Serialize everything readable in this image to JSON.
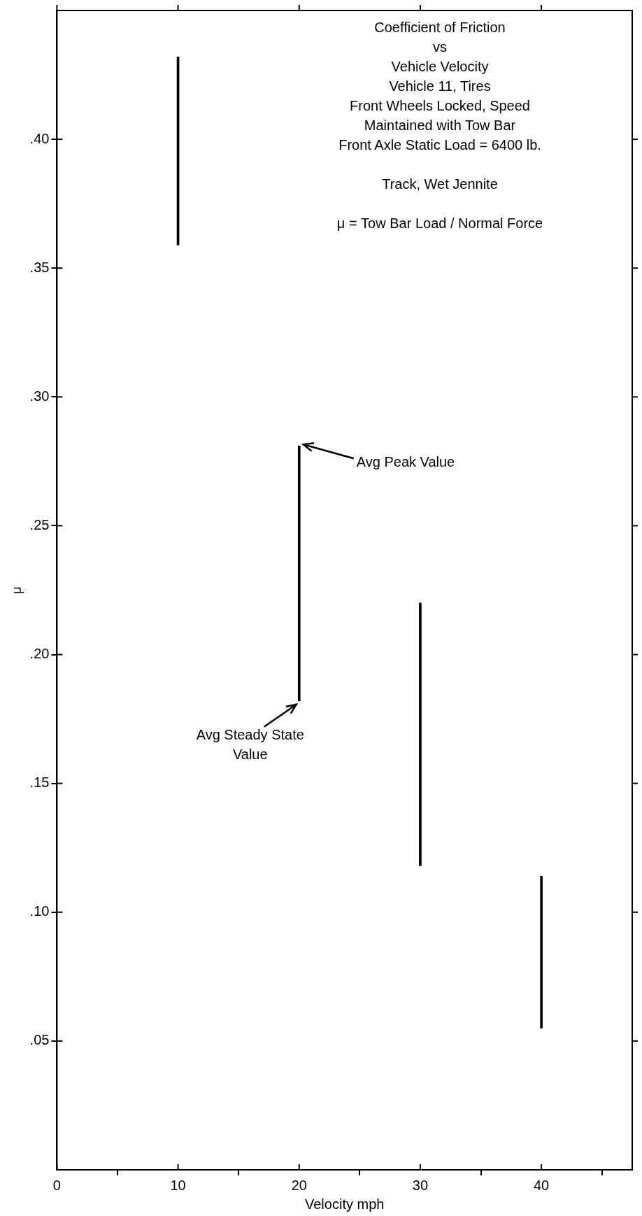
{
  "chart_data": {
    "type": "bar",
    "title": "Coefficient of Friction\nvs\nVehicle Velocity",
    "xlabel": "Velocity mph",
    "ylabel": "μ",
    "x": [
      10,
      20,
      30,
      40
    ],
    "base": [
      0.359,
      0.182,
      0.118,
      0.055
    ],
    "values": [
      0.073,
      0.099,
      0.102,
      0.059
    ],
    "color": "#000000",
    "xlim": [
      0,
      47.5
    ],
    "xticks": [
      0,
      10,
      20,
      30,
      40
    ],
    "ylim": [
      0,
      0.45
    ],
    "yticks": [
      {
        "value": 0.05,
        "label": ".05"
      },
      {
        "value": 0.1,
        "label": ".10"
      },
      {
        "value": 0.15,
        "label": ".15"
      },
      {
        "value": 0.2,
        "label": ".20"
      },
      {
        "value": 0.25,
        "label": ".25"
      },
      {
        "value": 0.3,
        "label": ".30"
      },
      {
        "value": 0.35,
        "label": ".35"
      },
      {
        "value": 0.4,
        "label": ".40"
      }
    ],
    "grid": false,
    "legend": false,
    "annotations": [
      "Vehicle 11, Tires",
      "Front Wheels Locked, Speed\nMaintained with Tow Bar",
      "Front Axle Static Load = 6400 lb.",
      "\nTrack, Wet Jennite",
      "\nμ = Tow Bar Load / Normal Force",
      {
        "text": "Avg Peak Value",
        "x": 20,
        "y": 0.281
      },
      {
        "text": "Avg Steady State\nValue",
        "x": 20,
        "y": 0.182
      }
    ]
  }
}
